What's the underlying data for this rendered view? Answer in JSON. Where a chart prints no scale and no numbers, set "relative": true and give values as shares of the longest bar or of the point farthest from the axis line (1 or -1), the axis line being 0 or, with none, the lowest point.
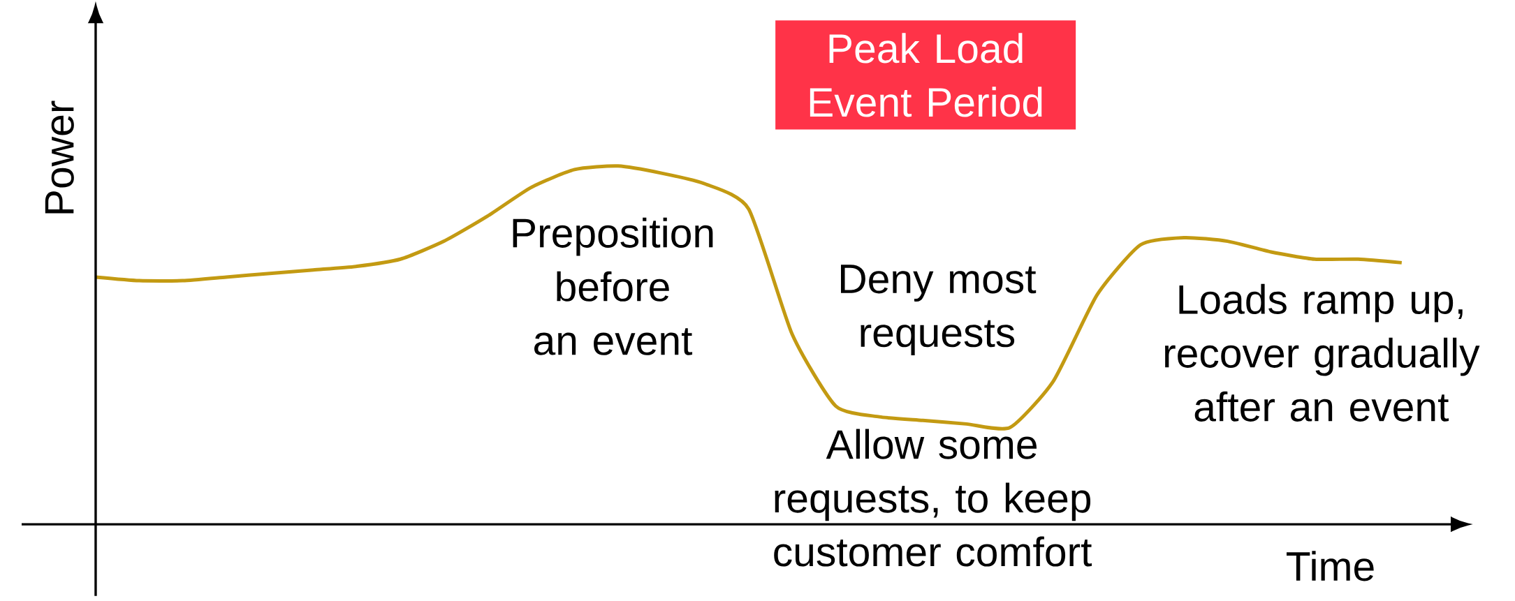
{
  "chart_data": {
    "type": "line",
    "relative": true,
    "xlabel": "Time",
    "ylabel": "Power",
    "categories": [
      null,
      null,
      null,
      null,
      null,
      null,
      null,
      null,
      null,
      null,
      null,
      null,
      null,
      null,
      null,
      null,
      null,
      null,
      null,
      null,
      null,
      null,
      null,
      null,
      null,
      null,
      null,
      null,
      null,
      null,
      null
    ],
    "series": [
      {
        "color": "#c39a12",
        "values": [
          0.69,
          0.68,
          0.68,
          0.69,
          0.7,
          0.71,
          0.72,
          0.74,
          0.79,
          0.86,
          0.94,
          0.99,
          1,
          0.98,
          0.95,
          0.88,
          0.53,
          0.33,
          0.3,
          0.29,
          0.28,
          0.27,
          0.4,
          0.64,
          0.78,
          0.8,
          0.79,
          0.76,
          0.74,
          0.74,
          0.73
        ]
      }
    ],
    "marker": "none",
    "line_style": "solid",
    "annotations": [
      "Peak Load Event Period",
      "Preposition before an event",
      "Deny most requests",
      "Allow some requests, to keep customer comfort",
      "Loads ramp up, recover gradually after an event"
    ]
  }
}
